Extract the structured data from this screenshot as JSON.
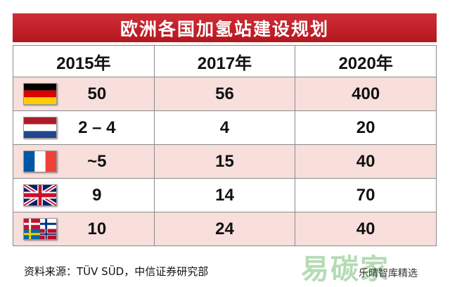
{
  "title": "欧洲各国加氢站建设规划",
  "chart_data": {
    "type": "table",
    "title": "欧洲各国加氢站建设规划",
    "columns": [
      "2015年",
      "2017年",
      "2020年"
    ],
    "rows": [
      {
        "flag_icon": "germany-flag-icon",
        "values": [
          "50",
          "56",
          "400"
        ]
      },
      {
        "flag_icon": "netherlands-flag-icon",
        "values": [
          "2 – 4",
          "4",
          "20"
        ]
      },
      {
        "flag_icon": "france-flag-icon",
        "values": [
          "~5",
          "15",
          "40"
        ]
      },
      {
        "flag_icon": "uk-flag-icon",
        "values": [
          "9",
          "14",
          "70"
        ]
      },
      {
        "flag_icon": "nordic-flags-icon",
        "values": [
          "10",
          "24",
          "40"
        ]
      }
    ]
  },
  "source": "资料来源：TÜV SÜD，中信证券研究部",
  "watermark": {
    "logo": "易碳家",
    "text": "乐晴智库精选"
  },
  "colors": {
    "title_bg": "#c4222a",
    "stripe": "#f8dfdc",
    "border": "#8a8a8a"
  }
}
